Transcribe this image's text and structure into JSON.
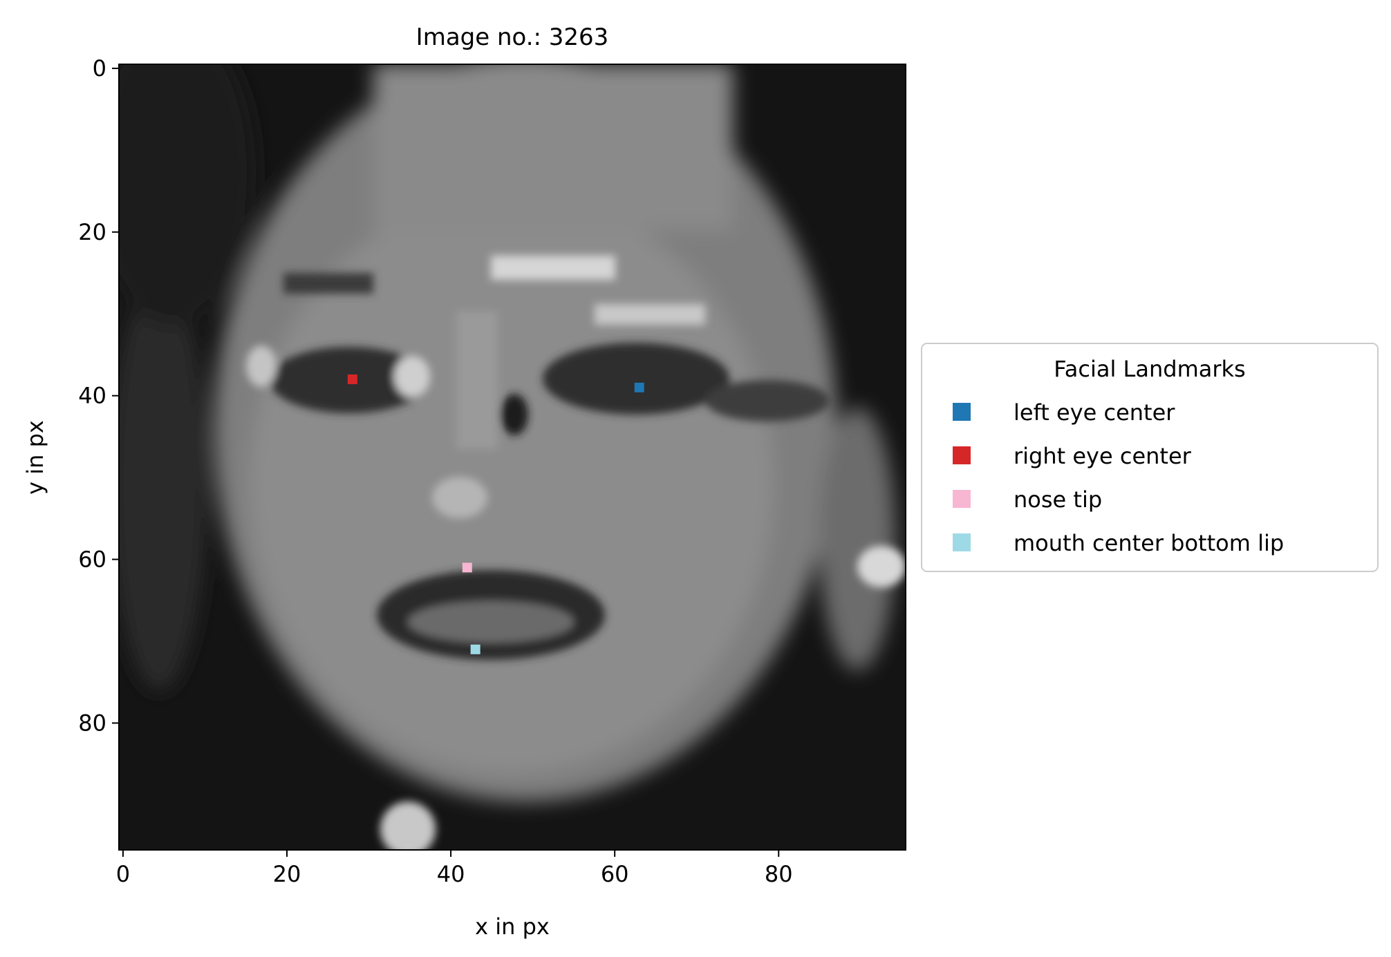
{
  "chart_data": {
    "type": "scatter",
    "title": "Image no.: 3263",
    "xlabel": "x in px",
    "ylabel": "y in px",
    "xlim": [
      -0.5,
      95.5
    ],
    "ylim": [
      95.5,
      -0.5
    ],
    "y_inverted": true,
    "background": "96x96 grayscale face image (lettering-free)",
    "xticks": [
      0,
      20,
      40,
      60,
      80
    ],
    "yticks": [
      0,
      20,
      40,
      60,
      80
    ],
    "legend": {
      "title": "Facial Landmarks",
      "placement": "center-left outside plot (right of axes)"
    },
    "series": [
      {
        "name": "left eye center",
        "color": "#1f77b4",
        "points": [
          [
            63,
            39
          ]
        ]
      },
      {
        "name": "right eye center",
        "color": "#d62728",
        "points": [
          [
            28,
            38
          ]
        ]
      },
      {
        "name": "nose tip",
        "color": "#f7b6d2",
        "points": [
          [
            42,
            61
          ]
        ]
      },
      {
        "name": "mouth center bottom lip",
        "color": "#9edae5",
        "points": [
          [
            43,
            71
          ]
        ]
      }
    ]
  }
}
